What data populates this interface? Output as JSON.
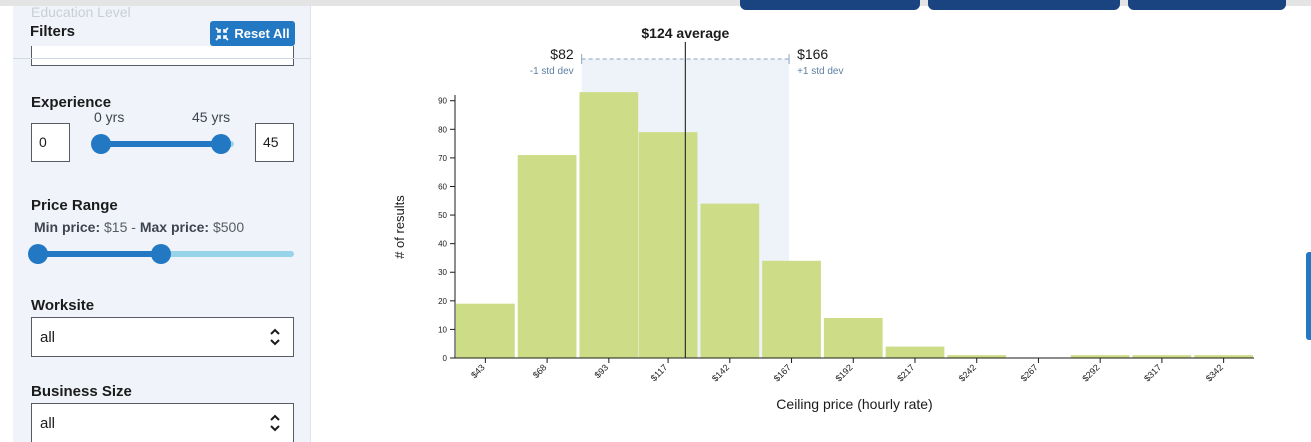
{
  "sidebar": {
    "faded_header": "Education Level",
    "filters_label": "Filters",
    "reset_label": "Reset All",
    "experience": {
      "label": "Experience",
      "min_value": "0",
      "max_value": "45",
      "min_tick": "0 yrs",
      "max_tick": "45 yrs",
      "slider_max": 50,
      "low": 0,
      "high": 45
    },
    "price_range": {
      "label": "Price Range",
      "min_prefix": "Min price:",
      "min_value": "$15",
      "separator": "-",
      "max_prefix": "Max price:",
      "max_value": "$500",
      "slider_low_fraction": 0.02,
      "slider_high_fraction": 0.49
    },
    "worksite": {
      "label": "Worksite",
      "value": "all"
    },
    "business_size": {
      "label": "Business Size",
      "value": "all"
    }
  },
  "chart_data": {
    "type": "bar",
    "categories": [
      "$43",
      "$68",
      "$93",
      "$117",
      "$142",
      "$167",
      "$192",
      "$217",
      "$242",
      "$267",
      "$292",
      "$317",
      "$342"
    ],
    "values": [
      19,
      71,
      93,
      79,
      54,
      34,
      14,
      4,
      1,
      0,
      1,
      1,
      1
    ],
    "bin_centers": [
      43,
      68,
      93,
      117,
      142,
      167,
      192,
      217,
      242,
      267,
      292,
      317,
      342
    ],
    "bin_width": 24.6,
    "xlabel": "Ceiling price (hourly rate)",
    "ylabel": "# of results",
    "yticks": [
      0,
      10,
      20,
      30,
      40,
      50,
      60,
      70,
      80,
      90
    ],
    "ylim": [
      0,
      92
    ],
    "xlim": [
      30.7,
      354.3
    ],
    "average": {
      "value": 124,
      "label": "$124 average"
    },
    "std_low": {
      "value": 82,
      "label": "$82",
      "sub": "-1 std dev"
    },
    "std_high": {
      "value": 166,
      "label": "$166",
      "sub": "+1 std dev"
    },
    "colors": {
      "bar": "#cddc86",
      "band": "#eef3f9",
      "band_line": "#8aa6c1",
      "avg_line": "#333333",
      "std_label": "#5b7fa3"
    }
  }
}
